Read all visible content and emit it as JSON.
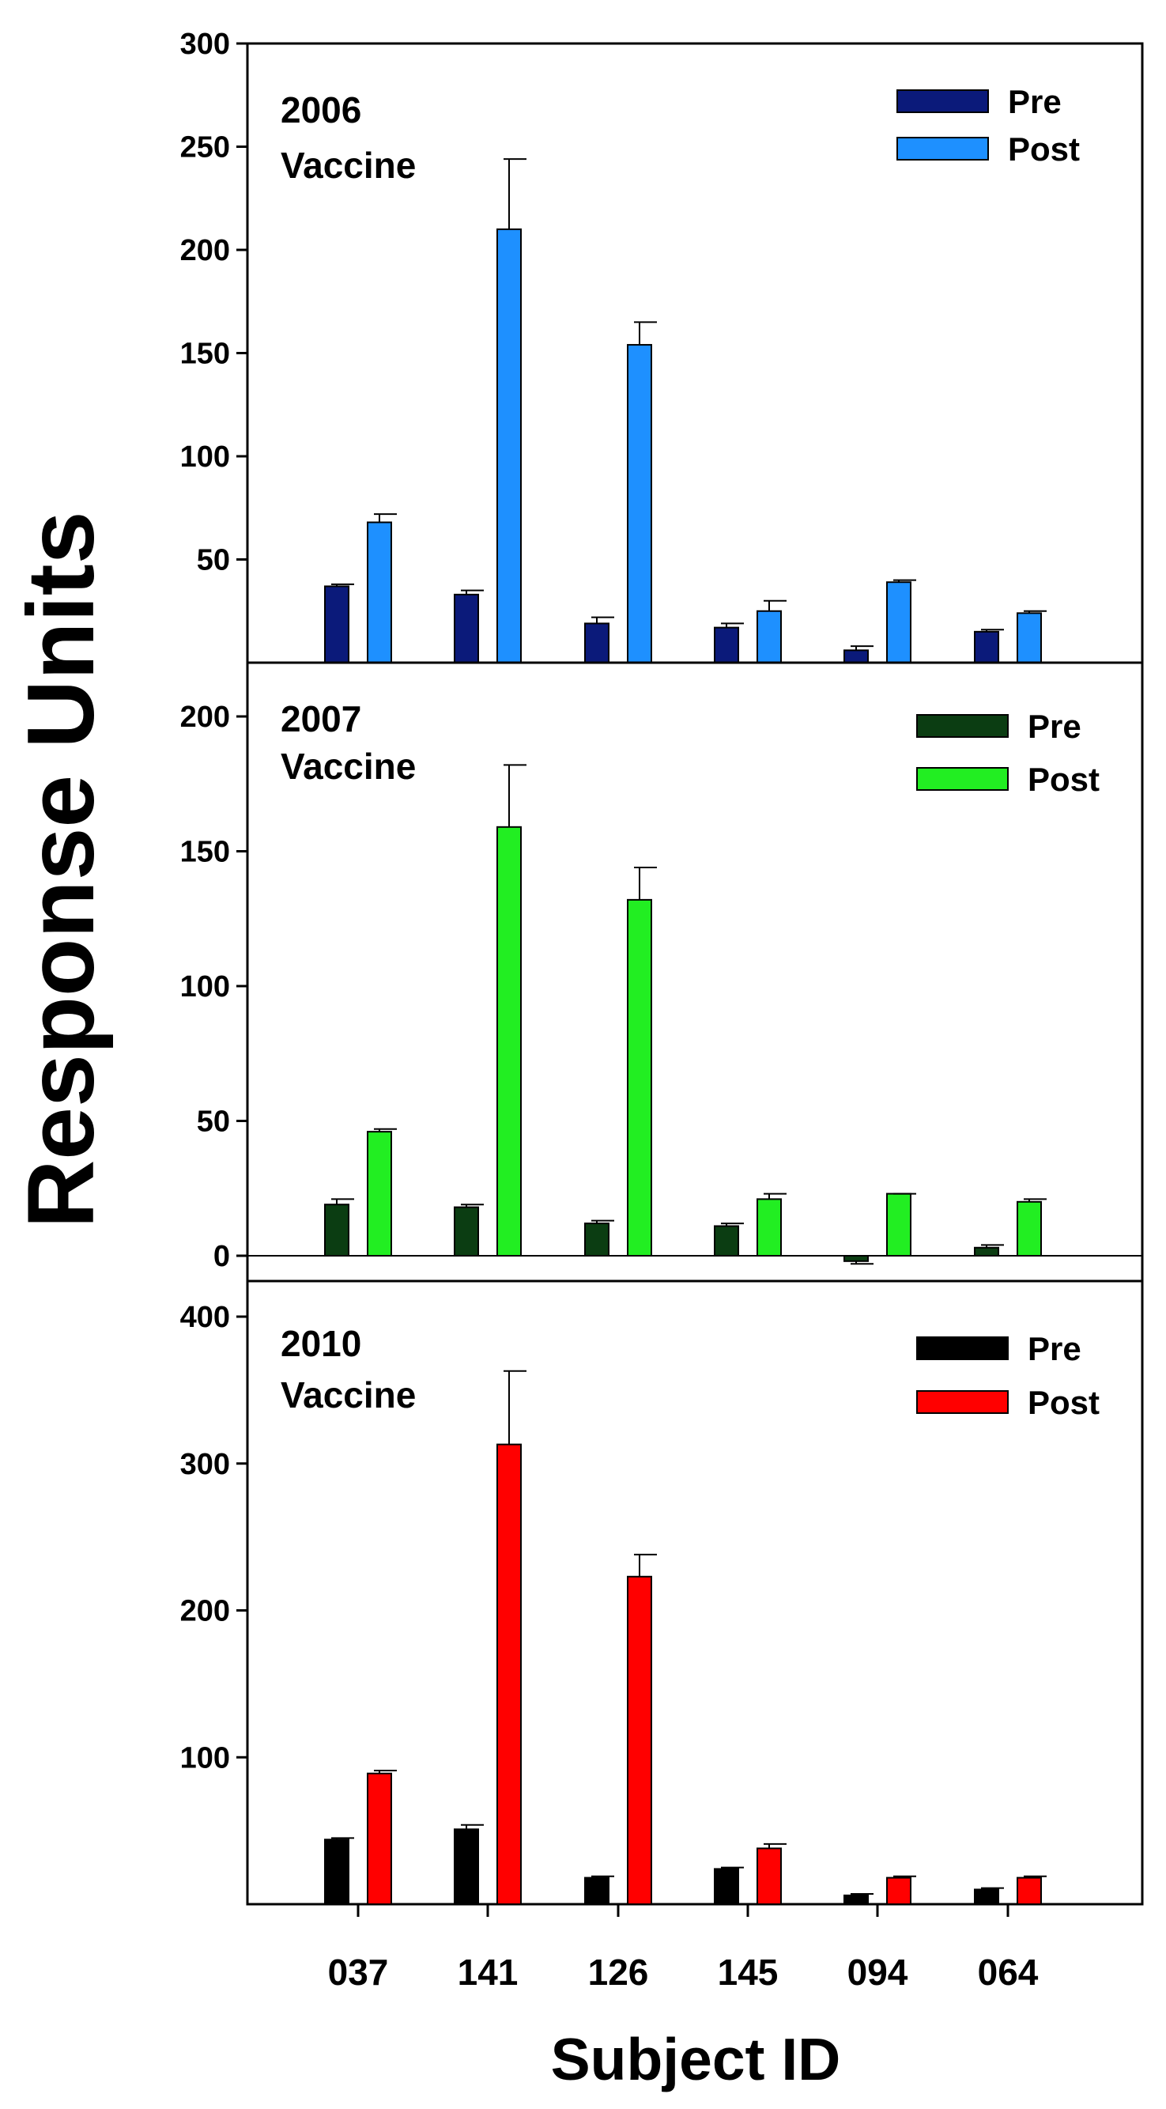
{
  "figure": {
    "ylabel": "Response Units",
    "xlabel": "Subject ID"
  },
  "legend_labels": {
    "pre": "Pre",
    "post": "Post"
  },
  "chart_data": [
    {
      "type": "bar",
      "title_line1": "2006",
      "title_line2": "Vaccine",
      "categories": [
        "037",
        "141",
        "126",
        "145",
        "094",
        "064"
      ],
      "ylim": [
        0,
        300
      ],
      "yticks": [
        50,
        100,
        150,
        200,
        250,
        300
      ],
      "grid": false,
      "legend_position": "top-right",
      "colors": {
        "pre": "#0b1a7a",
        "post": "#1e90ff"
      },
      "series": [
        {
          "name": "Pre",
          "values": [
            37,
            33,
            19,
            17,
            6,
            15
          ],
          "errors": [
            1,
            2,
            3,
            2,
            2,
            1
          ]
        },
        {
          "name": "Post",
          "values": [
            68,
            210,
            154,
            25,
            39,
            24
          ],
          "errors": [
            4,
            34,
            11,
            5,
            1,
            1
          ]
        }
      ]
    },
    {
      "type": "bar",
      "title_line1": "2007",
      "title_line2": "Vaccine",
      "categories": [
        "037",
        "141",
        "126",
        "145",
        "094",
        "064"
      ],
      "ylim": [
        -2,
        210
      ],
      "yticks": [
        0,
        50,
        100,
        150,
        200
      ],
      "zero_line": true,
      "grid": false,
      "legend_position": "top-right",
      "colors": {
        "pre": "#0b3d12",
        "post": "#22ee22"
      },
      "series": [
        {
          "name": "Pre",
          "values": [
            19,
            18,
            12,
            11,
            -2,
            3
          ],
          "errors": [
            2,
            1,
            1,
            1,
            1,
            1
          ]
        },
        {
          "name": "Post",
          "values": [
            46,
            159,
            132,
            21,
            23,
            20
          ],
          "errors": [
            1,
            23,
            12,
            2,
            0,
            1
          ]
        }
      ]
    },
    {
      "type": "bar",
      "title_line1": "2010",
      "title_line2": "Vaccine",
      "categories": [
        "037",
        "141",
        "126",
        "145",
        "094",
        "064"
      ],
      "ylim": [
        0,
        400
      ],
      "yticks": [
        100,
        200,
        300,
        400
      ],
      "grid": false,
      "legend_position": "top-right",
      "colors": {
        "pre": "#000000",
        "post": "#ff0000"
      },
      "series": [
        {
          "name": "Pre",
          "values": [
            44,
            51,
            18,
            24,
            6,
            10
          ],
          "errors": [
            1,
            3,
            1,
            1,
            1,
            1
          ]
        },
        {
          "name": "Post",
          "values": [
            89,
            313,
            223,
            38,
            18,
            18
          ],
          "errors": [
            2,
            50,
            15,
            3,
            1,
            1
          ]
        }
      ]
    }
  ]
}
